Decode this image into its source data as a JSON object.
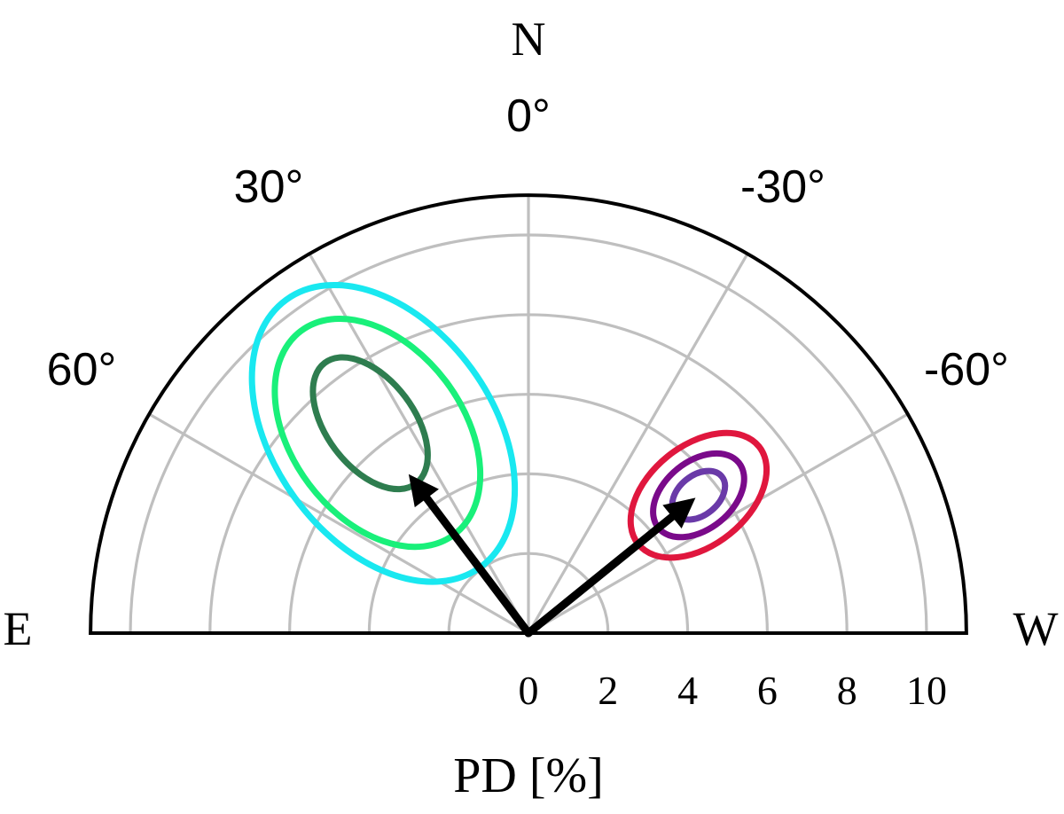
{
  "chart_data": {
    "type": "polar",
    "description_free": true,
    "radial_ticks": [
      "0",
      "2",
      "4",
      "6",
      "8",
      "10"
    ],
    "radial_tick_values": [
      0,
      2,
      4,
      6,
      8,
      10
    ],
    "r_max": 11,
    "angle_ticks": [
      {
        "angle": 0,
        "label": "0°"
      },
      {
        "angle": 30,
        "label": "30°"
      },
      {
        "angle": -30,
        "label": "-30°"
      },
      {
        "angle": 60,
        "label": "60°"
      },
      {
        "angle": -60,
        "label": "-60°"
      }
    ],
    "grid_angles": [
      90,
      60,
      30,
      0,
      -30,
      -60,
      -90
    ],
    "grid": true,
    "compass": {
      "north": "N",
      "east": "E",
      "west": "W"
    },
    "xlabel": "PD [%]",
    "colors": {
      "grid": "#bfbfbf",
      "frame": "#000000",
      "arrow": "#000000"
    },
    "arrows": [
      {
        "pd": 5.0,
        "angle": 37
      },
      {
        "pd": 5.4,
        "angle": -51
      }
    ],
    "contours": [
      {
        "center_pd": 6.6,
        "center_angle": 37,
        "a": 1.9,
        "b": 1.1,
        "tilt": 37,
        "color": "#2e7d4f"
      },
      {
        "center_pd": 6.3,
        "center_angle": 37,
        "a": 3.2,
        "b": 2.15,
        "tilt": 37,
        "color": "#19f07a"
      },
      {
        "center_pd": 6.2,
        "center_angle": 36,
        "a": 4.15,
        "b": 2.75,
        "tilt": 36,
        "color": "#19e8f0"
      },
      {
        "center_pd": 5.5,
        "center_angle": -51,
        "a": 0.75,
        "b": 0.5,
        "tilt": -51,
        "color": "#6a3aa8"
      },
      {
        "center_pd": 5.5,
        "center_angle": -51,
        "a": 1.3,
        "b": 0.85,
        "tilt": -51,
        "color": "#7a0a8a"
      },
      {
        "center_pd": 5.5,
        "center_angle": -51,
        "a": 1.95,
        "b": 1.25,
        "tilt": -51,
        "color": "#e0173e"
      }
    ]
  }
}
